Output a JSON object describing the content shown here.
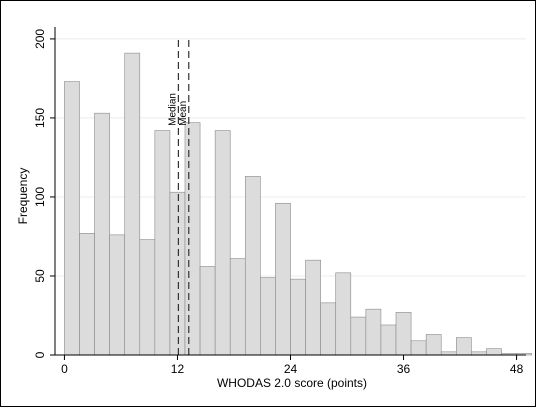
{
  "chart_data": {
    "type": "bar",
    "title": "",
    "xlabel": "WHODAS 2.0 score (points)",
    "ylabel": "Frequency",
    "xlim": [
      -1.0,
      49.0
    ],
    "ylim": [
      0,
      205
    ],
    "x_ticks": [
      0,
      12,
      24,
      36,
      48
    ],
    "y_ticks": [
      0,
      50,
      100,
      150,
      200
    ],
    "grid": "horizontal",
    "bin_width": 1.6,
    "bins": [
      {
        "start": 0.0,
        "end": 1.6,
        "value": 173
      },
      {
        "start": 1.6,
        "end": 3.2,
        "value": 77
      },
      {
        "start": 3.2,
        "end": 4.8,
        "value": 153
      },
      {
        "start": 4.8,
        "end": 6.4,
        "value": 76
      },
      {
        "start": 6.4,
        "end": 8.0,
        "value": 191
      },
      {
        "start": 8.0,
        "end": 9.6,
        "value": 73
      },
      {
        "start": 9.6,
        "end": 11.2,
        "value": 142
      },
      {
        "start": 11.2,
        "end": 12.8,
        "value": 103
      },
      {
        "start": 12.8,
        "end": 14.4,
        "value": 147
      },
      {
        "start": 14.4,
        "end": 16.0,
        "value": 56
      },
      {
        "start": 16.0,
        "end": 17.6,
        "value": 142
      },
      {
        "start": 17.6,
        "end": 19.2,
        "value": 61
      },
      {
        "start": 19.2,
        "end": 20.8,
        "value": 113
      },
      {
        "start": 20.8,
        "end": 22.4,
        "value": 49
      },
      {
        "start": 22.4,
        "end": 24.0,
        "value": 96
      },
      {
        "start": 24.0,
        "end": 25.6,
        "value": 48
      },
      {
        "start": 25.6,
        "end": 27.2,
        "value": 60
      },
      {
        "start": 27.2,
        "end": 28.8,
        "value": 33
      },
      {
        "start": 28.8,
        "end": 30.4,
        "value": 52
      },
      {
        "start": 30.4,
        "end": 32.0,
        "value": 24
      },
      {
        "start": 32.0,
        "end": 33.6,
        "value": 29
      },
      {
        "start": 33.6,
        "end": 35.2,
        "value": 19
      },
      {
        "start": 35.2,
        "end": 36.8,
        "value": 27
      },
      {
        "start": 36.8,
        "end": 38.4,
        "value": 9
      },
      {
        "start": 38.4,
        "end": 40.0,
        "value": 13
      },
      {
        "start": 40.0,
        "end": 41.6,
        "value": 2
      },
      {
        "start": 41.6,
        "end": 43.2,
        "value": 11
      },
      {
        "start": 43.2,
        "end": 44.8,
        "value": 2
      },
      {
        "start": 44.8,
        "end": 46.4,
        "value": 4
      },
      {
        "start": 46.4,
        "end": 48.0,
        "value": 1
      },
      {
        "start": 48.0,
        "end": 49.6,
        "value": 1
      }
    ],
    "annotations": [
      {
        "label": "Median",
        "x": 12.1,
        "style": "dashed"
      },
      {
        "label": "Mean",
        "x": 13.2,
        "style": "dashed"
      }
    ],
    "colors": {
      "bar_fill": "#dcdcdc",
      "bar_stroke": "#8a8a8a",
      "grid": "#ececec",
      "axis": "#000000",
      "marker_line": "#333333"
    }
  }
}
